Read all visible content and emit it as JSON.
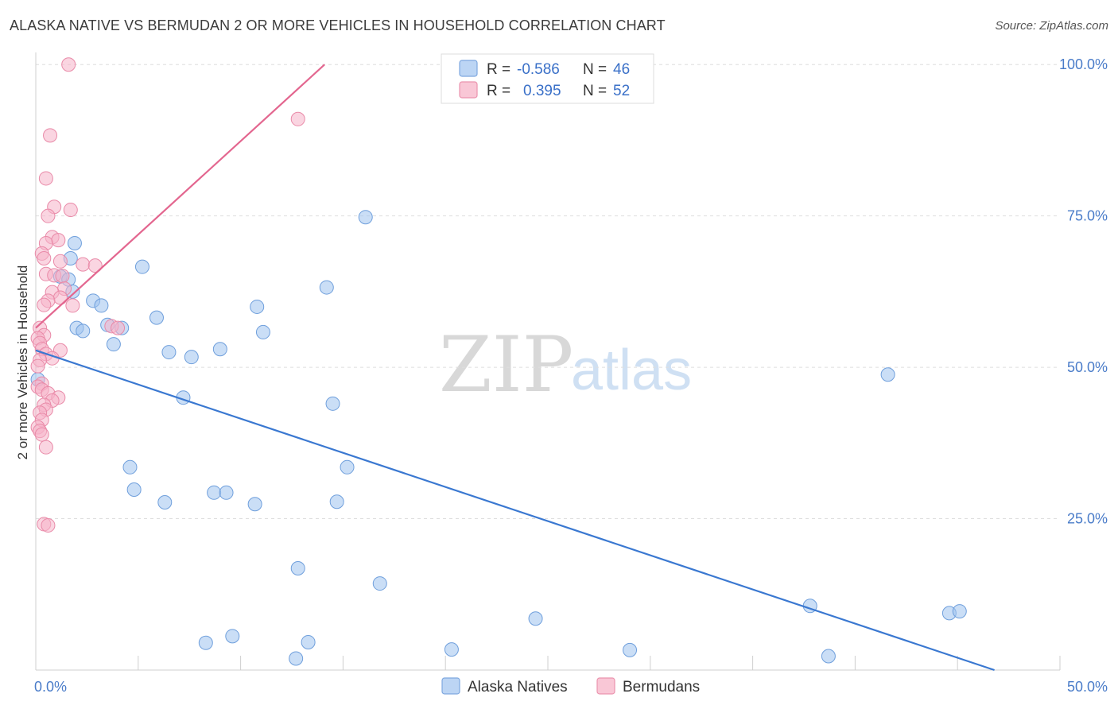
{
  "header": {
    "title": "ALASKA NATIVE VS BERMUDAN 2 OR MORE VEHICLES IN HOUSEHOLD CORRELATION CHART",
    "source": "Source: ZipAtlas.com"
  },
  "watermark": {
    "zip": "ZIP",
    "atlas": "atlas"
  },
  "legend": {
    "rows": [
      {
        "r_label": "R =",
        "r_value": "-0.586",
        "n_label": "N =",
        "n_value": "46",
        "color": "#9ec3ef"
      },
      {
        "r_label": "R =",
        "r_value": "0.395",
        "n_label": "N =",
        "n_value": "52",
        "color": "#f5b3c8"
      }
    ]
  },
  "bottom_legend": {
    "items": [
      {
        "label": "Alaska Natives",
        "color": "#9ec3ef"
      },
      {
        "label": "Bermudans",
        "color": "#f5b3c8"
      }
    ]
  },
  "chart_data": {
    "type": "scatter",
    "xlabel": "",
    "ylabel": "2 or more Vehicles in Household",
    "xlim": [
      0,
      50
    ],
    "ylim": [
      0,
      102
    ],
    "x_tick_labels": [
      {
        "value": 0,
        "label": "0.0%"
      },
      {
        "value": 50,
        "label": "50.0%"
      }
    ],
    "y_tick_labels": [
      {
        "value": 25,
        "label": "25.0%"
      },
      {
        "value": 50,
        "label": "50.0%"
      },
      {
        "value": 75,
        "label": "75.0%"
      },
      {
        "value": 100,
        "label": "100.0%"
      }
    ],
    "grid": true,
    "legend_position": "top-center",
    "series": [
      {
        "name": "Alaska Natives",
        "color": "#9ec3ef",
        "stroke": "#6f9fdc",
        "line_color": "#3a78d1",
        "trend": {
          "x": [
            0,
            46.8
          ],
          "y": [
            52.8,
            0
          ]
        },
        "points": [
          [
            0.1,
            48
          ],
          [
            1.9,
            70.5
          ],
          [
            1.7,
            68
          ],
          [
            1.2,
            65
          ],
          [
            1.6,
            64.5
          ],
          [
            1.8,
            62.5
          ],
          [
            2.8,
            61
          ],
          [
            3.2,
            60.2
          ],
          [
            2.0,
            56.5
          ],
          [
            2.3,
            56
          ],
          [
            3.5,
            57
          ],
          [
            4.2,
            56.5
          ],
          [
            3.8,
            53.8
          ],
          [
            5.2,
            66.6
          ],
          [
            5.9,
            58.2
          ],
          [
            6.5,
            52.5
          ],
          [
            7.6,
            51.7
          ],
          [
            7.2,
            45
          ],
          [
            9.0,
            53
          ],
          [
            10.8,
            60
          ],
          [
            11.1,
            55.8
          ],
          [
            14.2,
            63.2
          ],
          [
            16.1,
            74.8
          ],
          [
            14.5,
            44
          ],
          [
            15.2,
            33.5
          ],
          [
            4.6,
            33.5
          ],
          [
            4.8,
            29.8
          ],
          [
            6.3,
            27.7
          ],
          [
            8.7,
            29.3
          ],
          [
            9.3,
            29.3
          ],
          [
            10.7,
            27.4
          ],
          [
            14.7,
            27.8
          ],
          [
            12.8,
            16.8
          ],
          [
            16.8,
            14.3
          ],
          [
            8.3,
            4.5
          ],
          [
            9.6,
            5.6
          ],
          [
            12.7,
            1.9
          ],
          [
            13.3,
            4.6
          ],
          [
            20.3,
            3.4
          ],
          [
            24.4,
            8.5
          ],
          [
            29.0,
            3.3
          ],
          [
            37.8,
            10.6
          ],
          [
            38.7,
            2.3
          ],
          [
            41.6,
            48.8
          ],
          [
            44.6,
            9.4
          ],
          [
            45.1,
            9.7
          ]
        ]
      },
      {
        "name": "Bermudans",
        "color": "#f5b3c8",
        "stroke": "#e98aa8",
        "line_color": "#e3668f",
        "trend": {
          "x": [
            0,
            14.1
          ],
          "y": [
            56.5,
            100
          ]
        },
        "points": [
          [
            1.6,
            100
          ],
          [
            12.8,
            91
          ],
          [
            0.7,
            88.3
          ],
          [
            0.5,
            81.2
          ],
          [
            1.7,
            76
          ],
          [
            0.9,
            76.5
          ],
          [
            0.6,
            75
          ],
          [
            0.8,
            71.5
          ],
          [
            1.1,
            71
          ],
          [
            0.5,
            70.5
          ],
          [
            0.3,
            68.8
          ],
          [
            0.4,
            68
          ],
          [
            1.2,
            67.5
          ],
          [
            2.3,
            67
          ],
          [
            2.9,
            66.8
          ],
          [
            0.5,
            65.4
          ],
          [
            0.9,
            65.2
          ],
          [
            1.3,
            65.1
          ],
          [
            1.4,
            63
          ],
          [
            0.8,
            62.4
          ],
          [
            1.2,
            61.5
          ],
          [
            0.6,
            61
          ],
          [
            0.4,
            60.3
          ],
          [
            1.8,
            60.2
          ],
          [
            0.2,
            56.5
          ],
          [
            0.4,
            55.3
          ],
          [
            0.1,
            54.8
          ],
          [
            0.2,
            54
          ],
          [
            0.3,
            53
          ],
          [
            1.2,
            52.8
          ],
          [
            0.5,
            52.2
          ],
          [
            0.8,
            51.5
          ],
          [
            0.2,
            51.2
          ],
          [
            0.1,
            50.2
          ],
          [
            0.3,
            47.3
          ],
          [
            0.1,
            46.8
          ],
          [
            0.3,
            46.3
          ],
          [
            0.6,
            45.7
          ],
          [
            1.1,
            45
          ],
          [
            0.8,
            44.5
          ],
          [
            0.4,
            43.8
          ],
          [
            0.5,
            43
          ],
          [
            0.2,
            42.5
          ],
          [
            0.3,
            41.3
          ],
          [
            0.1,
            40.1
          ],
          [
            0.2,
            39.5
          ],
          [
            0.4,
            24.1
          ],
          [
            0.6,
            23.9
          ],
          [
            3.7,
            56.8
          ],
          [
            4.0,
            56.5
          ],
          [
            0.3,
            38.9
          ],
          [
            0.5,
            36.8
          ]
        ]
      }
    ]
  }
}
